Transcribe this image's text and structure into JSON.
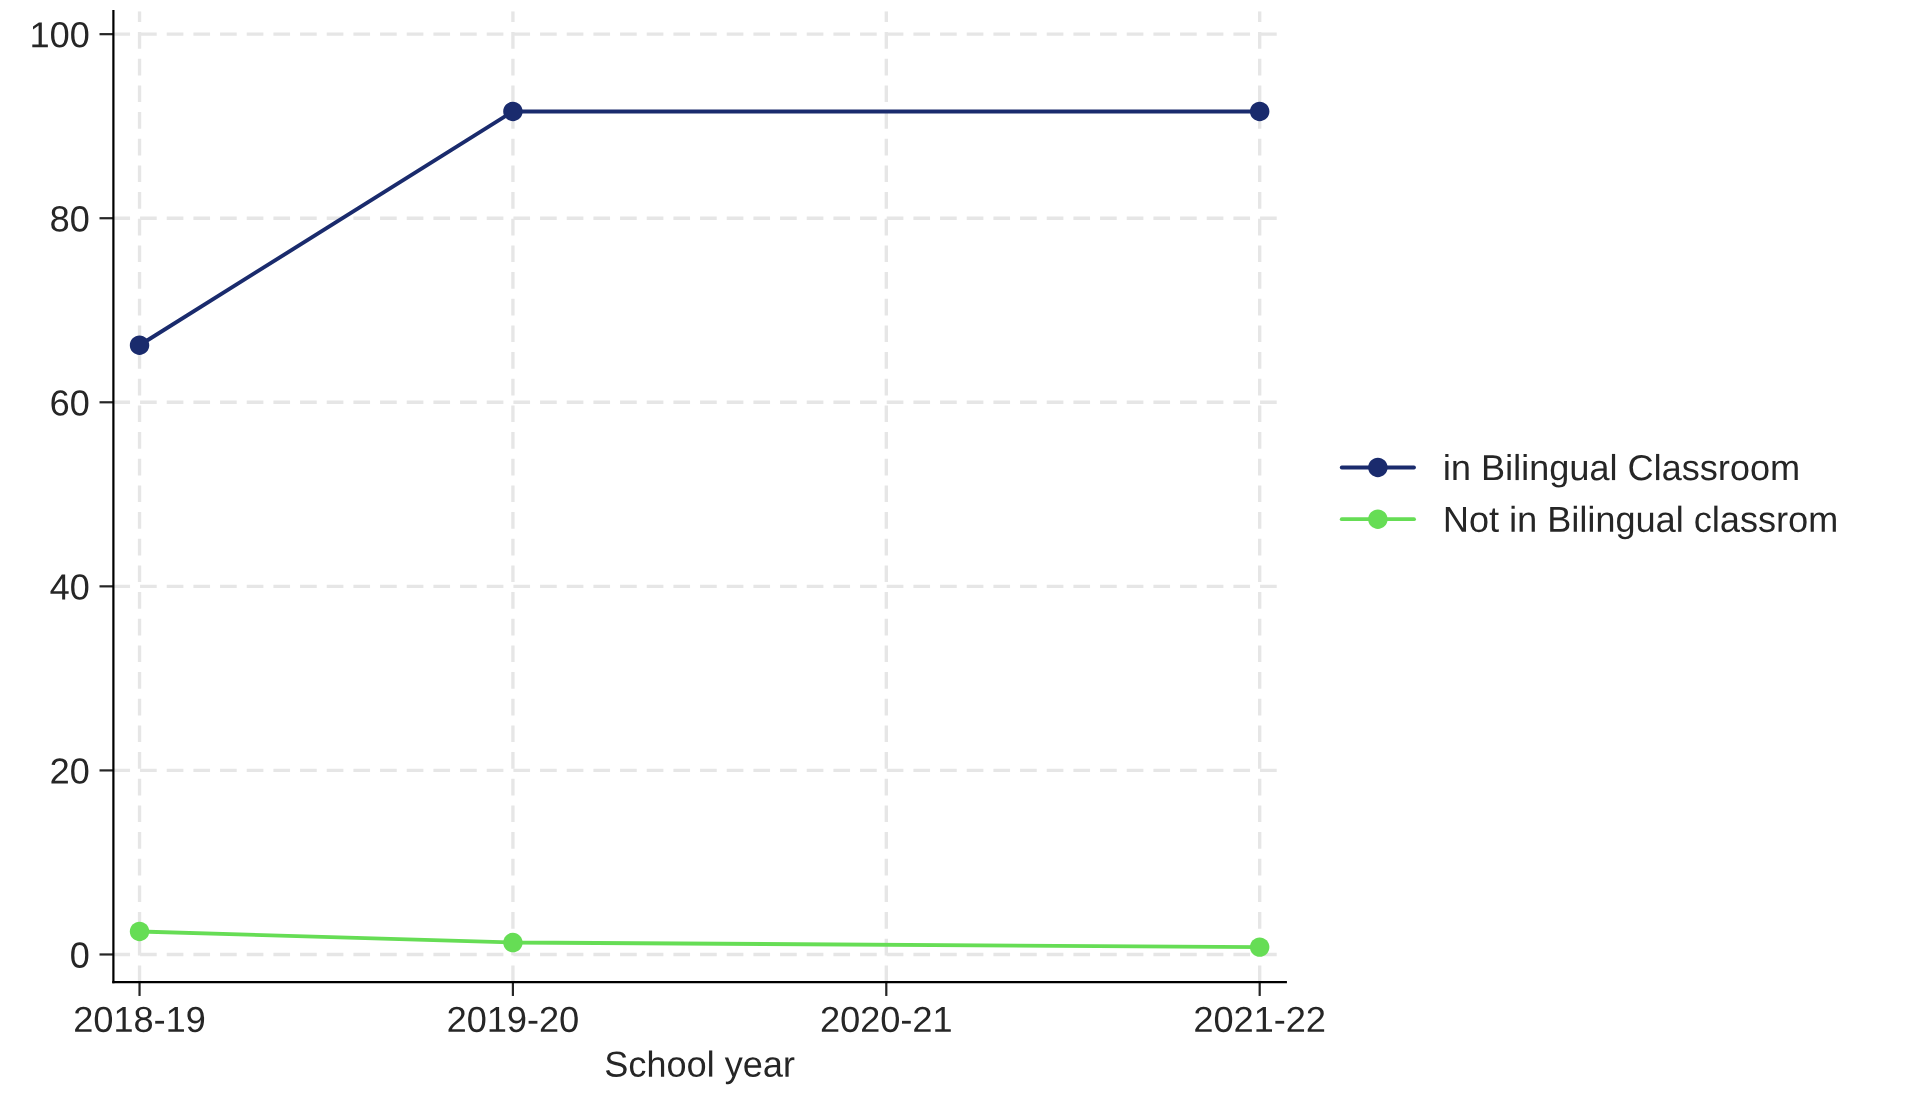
{
  "chart_data": {
    "type": "line",
    "xlabel": "School year",
    "categories": [
      "2018-19",
      "2019-20",
      "2020-21",
      "2021-22"
    ],
    "series": [
      {
        "name": "in Bilingual Classroom",
        "color": "#1a2b6d",
        "values": [
          66.2,
          91.6,
          null,
          91.6
        ]
      },
      {
        "name": "Not in Bilingual classrom",
        "color": "#66dd55",
        "values": [
          2.5,
          1.3,
          null,
          0.8
        ]
      }
    ],
    "ylim": [
      -3,
      102.5
    ],
    "yticks": [
      0,
      20,
      40,
      60,
      80,
      100
    ],
    "grid": true,
    "legend": "right",
    "marker": "circle",
    "line_style": "solid"
  }
}
